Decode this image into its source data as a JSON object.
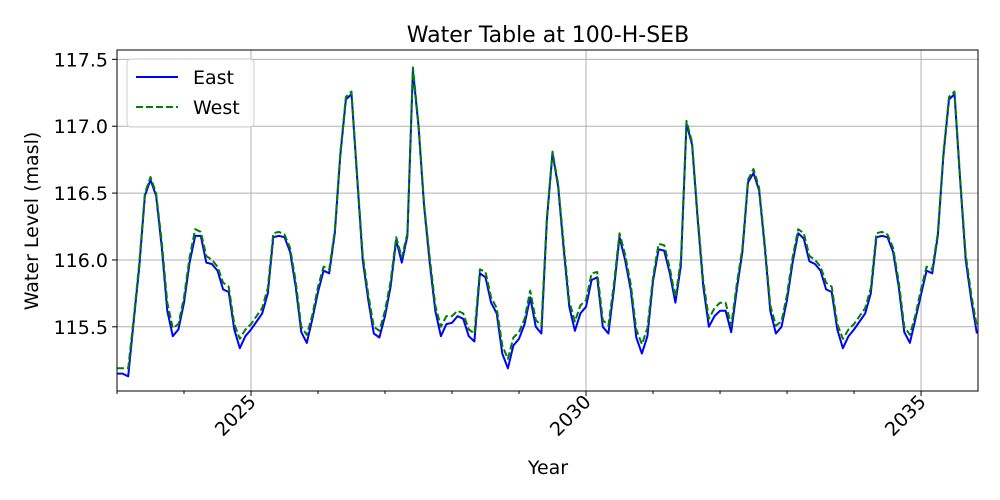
{
  "chart_data": {
    "type": "line",
    "title": "Water Table at 100-H-SEB",
    "xlabel": "Year",
    "ylabel": "Water Level (masl)",
    "xlim": [
      2023.0,
      2035.85
    ],
    "ylim": [
      115.02,
      117.57
    ],
    "x_ticks": [
      2025,
      2030,
      2035
    ],
    "x_tick_labels": [
      "2025",
      "2030",
      "2035"
    ],
    "y_ticks": [
      115.5,
      116.0,
      116.5,
      117.0,
      117.5
    ],
    "y_tick_labels": [
      "115.5",
      "116.0",
      "116.5",
      "117.0",
      "117.5"
    ],
    "grid": true,
    "legend": "top-left",
    "series": [
      {
        "name": "East",
        "color": "#0000ff",
        "dash": "solid",
        "values": [
          115.15,
          115.15,
          115.13,
          115.55,
          115.95,
          116.48,
          116.6,
          116.48,
          116.1,
          115.62,
          115.43,
          115.48,
          115.68,
          115.98,
          116.18,
          116.18,
          115.98,
          115.97,
          115.92,
          115.78,
          115.76,
          115.48,
          115.34,
          115.43,
          115.48,
          115.54,
          115.6,
          115.75,
          116.17,
          116.18,
          116.17,
          116.06,
          115.8,
          115.46,
          115.38,
          115.56,
          115.76,
          115.92,
          115.9,
          116.2,
          116.78,
          117.2,
          117.24,
          116.62,
          116.0,
          115.7,
          115.45,
          115.42,
          115.58,
          115.8,
          116.15,
          115.98,
          116.18,
          117.42,
          117.0,
          116.4,
          115.98,
          115.62,
          115.43,
          115.52,
          115.53,
          115.58,
          115.56,
          115.43,
          115.39,
          115.9,
          115.87,
          115.68,
          115.6,
          115.3,
          115.19,
          115.36,
          115.41,
          115.52,
          115.72,
          115.5,
          115.45,
          116.3,
          116.8,
          116.55,
          116.08,
          115.65,
          115.47,
          115.6,
          115.65,
          115.85,
          115.87,
          115.5,
          115.45,
          115.78,
          116.17,
          116.0,
          115.78,
          115.42,
          115.3,
          115.43,
          115.84,
          116.08,
          116.07,
          115.9,
          115.68,
          115.96,
          117.02,
          116.86,
          116.3,
          115.8,
          115.5,
          115.58,
          115.62,
          115.62,
          115.46,
          115.78,
          116.06,
          116.58,
          116.65,
          116.52,
          116.1,
          115.62,
          115.45,
          115.5,
          115.7,
          115.98,
          116.2,
          116.16,
          115.99,
          115.97,
          115.92,
          115.78,
          115.76,
          115.48,
          115.34,
          115.43,
          115.48,
          115.54,
          115.6,
          115.75,
          116.17,
          116.18,
          116.17,
          116.06,
          115.8,
          115.46,
          115.38,
          115.56,
          115.74,
          115.92,
          115.9,
          116.18,
          116.78,
          117.2,
          117.24,
          116.6,
          116.0,
          115.7,
          115.45
        ]
      },
      {
        "name": "West",
        "color": "#008000",
        "dash": "dashed",
        "values": [
          115.19,
          115.19,
          115.19,
          115.57,
          115.98,
          116.5,
          116.62,
          116.5,
          116.14,
          115.68,
          115.49,
          115.52,
          115.72,
          116.02,
          116.23,
          116.21,
          116.03,
          116.0,
          115.95,
          115.83,
          115.8,
          115.52,
          115.41,
          115.48,
          115.52,
          115.58,
          115.64,
          115.79,
          116.2,
          116.21,
          116.19,
          116.09,
          115.84,
          115.5,
          115.44,
          115.59,
          115.8,
          115.95,
          115.93,
          116.22,
          116.8,
          117.22,
          117.26,
          116.64,
          116.04,
          115.74,
          115.5,
          115.47,
          115.62,
          115.84,
          116.17,
          116.02,
          116.2,
          117.44,
          117.02,
          116.42,
          116.02,
          115.66,
          115.5,
          115.58,
          115.58,
          115.62,
          115.6,
          115.48,
          115.45,
          115.93,
          115.91,
          115.72,
          115.64,
          115.36,
          115.26,
          115.42,
          115.46,
          115.56,
          115.77,
          115.55,
          115.51,
          116.32,
          116.81,
          116.57,
          116.12,
          115.69,
          115.54,
          115.66,
          115.7,
          115.9,
          115.91,
          115.55,
          115.51,
          115.82,
          116.2,
          116.04,
          115.82,
          115.48,
          115.37,
          115.49,
          115.87,
          116.12,
          116.11,
          115.94,
          115.72,
          116.0,
          117.04,
          116.88,
          116.33,
          115.84,
          115.56,
          115.64,
          115.68,
          115.68,
          115.51,
          115.82,
          116.09,
          116.6,
          116.68,
          116.54,
          116.13,
          115.66,
          115.51,
          115.54,
          115.74,
          116.02,
          116.23,
          116.2,
          116.03,
          116.0,
          115.95,
          115.83,
          115.8,
          115.52,
          115.41,
          115.48,
          115.52,
          115.58,
          115.64,
          115.79,
          116.2,
          116.21,
          116.19,
          116.09,
          115.84,
          115.5,
          115.44,
          115.59,
          115.78,
          115.95,
          115.93,
          116.2,
          116.8,
          117.22,
          117.26,
          116.62,
          116.04,
          115.74,
          115.5
        ]
      }
    ]
  }
}
